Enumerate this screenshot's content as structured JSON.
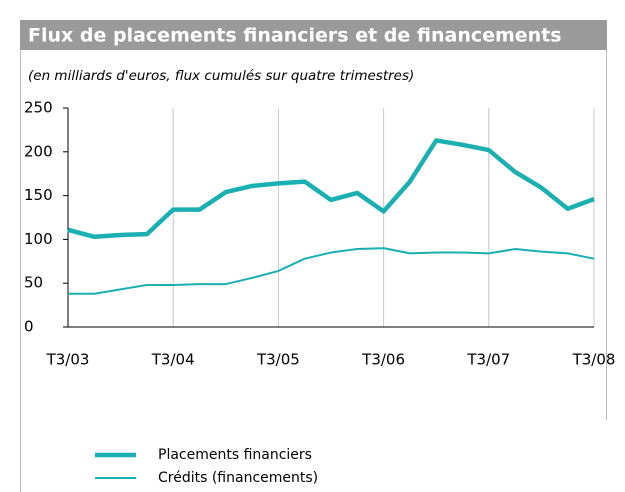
{
  "chart_data": {
    "type": "line",
    "title": "Flux de placements financiers et de financements",
    "subtitle": "(en milliards d'euros, flux cumulés sur quatre trimestres)",
    "categories": [
      "T3/03",
      null,
      null,
      null,
      "T3/04",
      null,
      null,
      null,
      "T3/05",
      null,
      null,
      null,
      "T3/06",
      null,
      null,
      null,
      "T3/07",
      null,
      null,
      null,
      "T3/08"
    ],
    "series": [
      {
        "name": "Placements financiers",
        "color": "#1aafb0",
        "line_width": 4.5,
        "values": [
          111,
          103,
          105,
          106,
          134,
          134,
          154,
          161,
          164,
          166,
          145,
          153,
          132,
          166,
          213,
          208,
          202,
          177,
          159,
          135,
          146
        ]
      },
      {
        "name": "Crédits (financements)",
        "color": "#1aafb0",
        "line_width": 2,
        "values": [
          38,
          38,
          43,
          48,
          48,
          49,
          49,
          56,
          64,
          78,
          85,
          89,
          90,
          84,
          85,
          85,
          84,
          89,
          86,
          84,
          78
        ]
      }
    ],
    "ylim": [
      0,
      250
    ],
    "yticks": [
      0,
      50,
      100,
      150,
      200,
      250
    ],
    "grid": true
  }
}
